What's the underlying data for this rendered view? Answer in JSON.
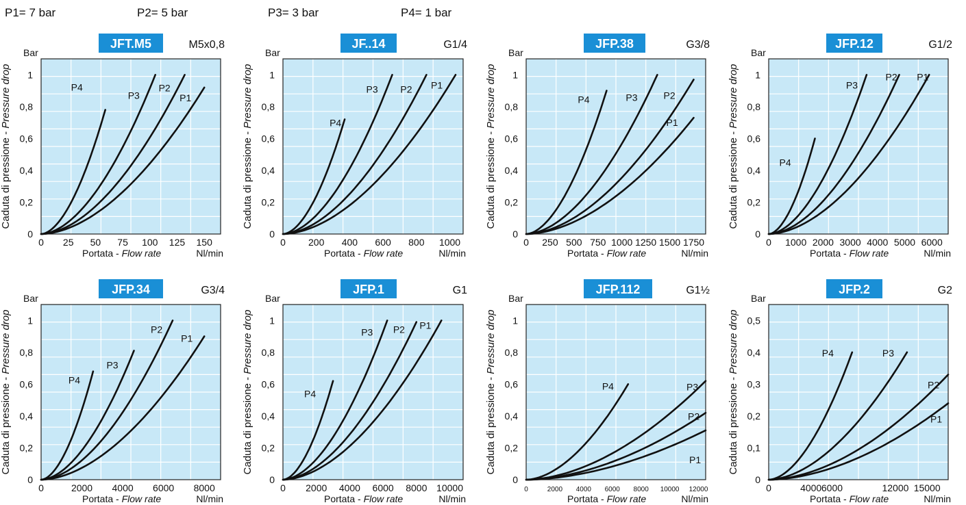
{
  "legend": [
    {
      "label": "P1= 7 bar"
    },
    {
      "label": "P2= 5 bar"
    },
    {
      "label": "P3= 3 bar"
    },
    {
      "label": "P4= 1 bar"
    }
  ],
  "colors": {
    "plot_bg": "#c8e8f7",
    "badge": "#1a8fd6",
    "grid": "#ffffff",
    "curve": "#111111"
  },
  "chart_data": [
    {
      "type": "line",
      "model": "JFT.M5",
      "thread": "M5x0,8",
      "y_unit": "Bar",
      "ylabel": "Caduta di pressione - ",
      "ylabel_italic": "Pressure drop",
      "xlabel": "Portata - ",
      "xlabel_italic": "Flow rate",
      "x_unit": "Nl/min",
      "xlim": [
        0,
        165
      ],
      "ylim": [
        0,
        1.1
      ],
      "xticks": [
        0,
        25,
        50,
        75,
        100,
        125,
        150
      ],
      "xtick_labels": [
        "0",
        "25",
        "50",
        "75",
        "100",
        "125",
        "150"
      ],
      "yticks": [
        0,
        0.2,
        0.4,
        0.6,
        0.8,
        1
      ],
      "ytick_labels": [
        "0",
        "0,2",
        "0,4",
        "0,6",
        "0,8",
        "1"
      ],
      "series": [
        {
          "name": "P4",
          "x_max": 59,
          "y_max": 0.78
        },
        {
          "name": "P3",
          "x_max": 105,
          "y_max": 1.0
        },
        {
          "name": "P2",
          "x_max": 132,
          "y_max": 1.0
        },
        {
          "name": "P1",
          "x_max": 150,
          "y_max": 0.92
        }
      ]
    },
    {
      "type": "line",
      "model": "JF..14",
      "thread": "G1/4",
      "y_unit": "Bar",
      "ylabel": "Caduta di pressione - ",
      "ylabel_italic": "Pressure drop",
      "xlabel": "Portata - ",
      "xlabel_italic": "Flow rate",
      "x_unit": "Nl/min",
      "xlim": [
        0,
        1080
      ],
      "ylim": [
        0,
        1.1
      ],
      "xticks": [
        0,
        200,
        400,
        600,
        800,
        1000
      ],
      "xtick_labels": [
        "0",
        "200",
        "400",
        "600",
        "800",
        "1000"
      ],
      "yticks": [
        0,
        0.2,
        0.4,
        0.6,
        0.8,
        1
      ],
      "ytick_labels": [
        "0",
        "0,2",
        "0,4",
        "0,6",
        "0,8",
        "1"
      ],
      "series": [
        {
          "name": "P4",
          "x_max": 370,
          "y_max": 0.72
        },
        {
          "name": "P3",
          "x_max": 655,
          "y_max": 1.0
        },
        {
          "name": "P2",
          "x_max": 860,
          "y_max": 1.0
        },
        {
          "name": "P1",
          "x_max": 1035,
          "y_max": 1.0
        }
      ]
    },
    {
      "type": "line",
      "model": "JFP.38",
      "thread": "G3/8",
      "y_unit": "Bar",
      "ylabel": "Caduta di pressione - ",
      "ylabel_italic": "Pressure drop",
      "xlabel": "Portata - ",
      "xlabel_italic": "Flow rate",
      "x_unit": "Nl/min",
      "xlim": [
        0,
        1875
      ],
      "ylim": [
        0,
        1.1
      ],
      "xticks": [
        0,
        250,
        500,
        750,
        1000,
        1250,
        1500,
        1750
      ],
      "xtick_labels": [
        "0",
        "250",
        "500",
        "750",
        "1000",
        "1250",
        "1500",
        "1750"
      ],
      "yticks": [
        0,
        0.2,
        0.4,
        0.6,
        0.8,
        1
      ],
      "ytick_labels": [
        "0",
        "0,2",
        "0,4",
        "0,6",
        "0,8",
        "1"
      ],
      "series": [
        {
          "name": "P4",
          "x_max": 840,
          "y_max": 0.9
        },
        {
          "name": "P3",
          "x_max": 1370,
          "y_max": 1.0
        },
        {
          "name": "P2",
          "x_max": 1750,
          "y_max": 0.97
        },
        {
          "name": "P1",
          "x_max": 1750,
          "y_max": 0.73
        }
      ]
    },
    {
      "type": "line",
      "model": "JFP.12",
      "thread": "G1/2",
      "y_unit": "Bar",
      "ylabel": "Caduta di pressione - ",
      "ylabel_italic": "Pressure drop",
      "xlabel": "Portata - ",
      "xlabel_italic": "Flow rate",
      "x_unit": "Nl/min",
      "xlim": [
        0,
        6600
      ],
      "ylim": [
        0,
        1.1
      ],
      "xticks": [
        0,
        1000,
        2000,
        3000,
        4000,
        5000,
        6000
      ],
      "xtick_labels": [
        "0",
        "1000",
        "2000",
        "3000",
        "4000",
        "5000",
        "6000"
      ],
      "yticks": [
        0,
        0.2,
        0.4,
        0.6,
        0.8,
        1
      ],
      "ytick_labels": [
        "0",
        "0,2",
        "0,4",
        "0,6",
        "0,8",
        "1"
      ],
      "series": [
        {
          "name": "P4",
          "x_max": 1700,
          "y_max": 0.6
        },
        {
          "name": "P3",
          "x_max": 3600,
          "y_max": 1.0
        },
        {
          "name": "P2",
          "x_max": 4800,
          "y_max": 1.0
        },
        {
          "name": "P1",
          "x_max": 5900,
          "y_max": 1.0
        }
      ]
    },
    {
      "type": "line",
      "model": "JFP.34",
      "thread": "G3/4",
      "y_unit": "Bar",
      "ylabel": "Caduta di pressione - ",
      "ylabel_italic": "Pressure drop",
      "xlabel": "Portata - ",
      "xlabel_italic": "Flow rate",
      "x_unit": "Nl/min",
      "xlim": [
        0,
        8800
      ],
      "ylim": [
        0,
        1.1
      ],
      "xticks": [
        0,
        2000,
        4000,
        6000,
        8000
      ],
      "xtick_labels": [
        "0",
        "2000",
        "4000",
        "6000",
        "8000"
      ],
      "yticks": [
        0,
        0.2,
        0.4,
        0.6,
        0.8,
        1
      ],
      "ytick_labels": [
        "0",
        "0,2",
        "0,4",
        "0,6",
        "0,8",
        "1"
      ],
      "series": [
        {
          "name": "P4",
          "x_max": 2550,
          "y_max": 0.68
        },
        {
          "name": "P3",
          "x_max": 4550,
          "y_max": 0.81
        },
        {
          "name": "P2",
          "x_max": 6450,
          "y_max": 1.0
        },
        {
          "name": "P1",
          "x_max": 8000,
          "y_max": 0.9
        }
      ]
    },
    {
      "type": "line",
      "model": "JFP.1",
      "thread": "G1",
      "y_unit": "Bar",
      "ylabel": "Caduta di pressione - ",
      "ylabel_italic": "Pressure drop",
      "xlabel": "Portata - ",
      "xlabel_italic": "Flow rate",
      "x_unit": "Nl/min",
      "xlim": [
        0,
        10800
      ],
      "ylim": [
        0,
        1.1
      ],
      "xticks": [
        0,
        2000,
        4000,
        6000,
        8000,
        10000
      ],
      "xtick_labels": [
        "0",
        "2000",
        "4000",
        "6000",
        "8000",
        "10000"
      ],
      "yticks": [
        0,
        0.2,
        0.4,
        0.6,
        0.8,
        1
      ],
      "ytick_labels": [
        "0",
        "0,2",
        "0,4",
        "0,6",
        "0,8",
        "1"
      ],
      "series": [
        {
          "name": "P4",
          "x_max": 3000,
          "y_max": 0.62
        },
        {
          "name": "P3",
          "x_max": 6250,
          "y_max": 1.0
        },
        {
          "name": "P2",
          "x_max": 8000,
          "y_max": 0.99
        },
        {
          "name": "P1",
          "x_max": 9500,
          "y_max": 1.0
        }
      ]
    },
    {
      "type": "line",
      "model": "JFP.112",
      "thread": "G1½",
      "y_unit": "Bar",
      "ylabel": "Caduta di pressione - ",
      "ylabel_italic": "Pressure drop",
      "xlabel": "Portata - ",
      "xlabel_italic": "Flow rate",
      "x_unit": "Nl/min",
      "xlim": [
        0,
        12500
      ],
      "ylim": [
        0,
        1.1
      ],
      "xticks": [
        0,
        2000,
        4000,
        6000,
        8000,
        10000,
        12000
      ],
      "xtick_labels": [
        "0",
        "2000",
        "4000",
        "6000",
        "8000",
        "10000",
        "12000"
      ],
      "yticks": [
        0,
        0.2,
        0.4,
        0.6,
        0.8,
        1
      ],
      "ytick_labels": [
        "0",
        "0,2",
        "0,4",
        "0,6",
        "0,8",
        "1"
      ],
      "series": [
        {
          "name": "P4",
          "x_max": 7100,
          "y_max": 0.6
        },
        {
          "name": "P3",
          "x_max": 12500,
          "y_max": 0.62
        },
        {
          "name": "P2",
          "x_max": 12500,
          "y_max": 0.42
        },
        {
          "name": "P1",
          "x_max": 12500,
          "y_max": 0.31
        }
      ]
    },
    {
      "type": "line",
      "model": "JFP.2",
      "thread": "G2",
      "y_unit": "Bar",
      "ylabel": "Caduta di pressione - ",
      "ylabel_italic": "Pressure drop",
      "xlabel": "Portata - ",
      "xlabel_italic": "Flow rate",
      "x_unit": "Nl/min",
      "xlim": [
        0,
        17000
      ],
      "ylim": [
        0,
        0.55
      ],
      "xticks": [
        0,
        4000,
        6000,
        12000,
        15000
      ],
      "xtick_labels": [
        "0",
        "4000",
        "6000",
        "12000",
        "15000"
      ],
      "yticks": [
        0,
        0.1,
        0.2,
        0.3,
        0.4,
        0.5
      ],
      "ytick_labels": [
        "0",
        "0,1",
        "0,2",
        "0,3",
        "0,4",
        "0,5"
      ],
      "series": [
        {
          "name": "P4",
          "x_max": 7900,
          "y_max": 0.4
        },
        {
          "name": "P3",
          "x_max": 13100,
          "y_max": 0.4
        },
        {
          "name": "P2",
          "x_max": 17000,
          "y_max": 0.33
        },
        {
          "name": "P1",
          "x_max": 17000,
          "y_max": 0.24
        }
      ]
    }
  ]
}
